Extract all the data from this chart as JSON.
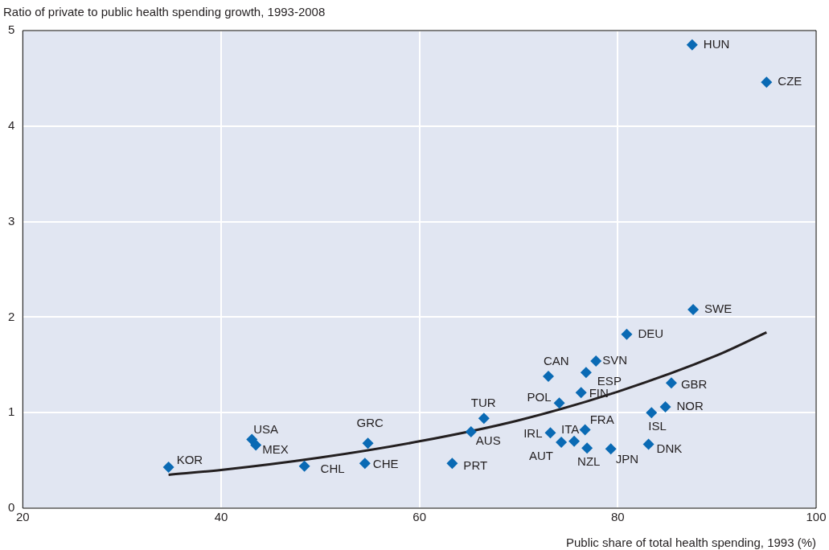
{
  "chart_data": {
    "type": "scatter",
    "ylabel": "Ratio of private to public health spending growth, 1993-2008",
    "xlabel": "Public share of total health spending, 1993 (%)",
    "xlim": [
      20,
      100
    ],
    "xticks": [
      20,
      40,
      60,
      80,
      100
    ],
    "ylim": [
      0,
      5
    ],
    "yticks": [
      0,
      1,
      2,
      3,
      4,
      5
    ],
    "grid": true,
    "legend": false,
    "marker": "diamond",
    "series": [
      {
        "color": "#0a6ab4",
        "x": [
          34.7,
          43.1,
          43.5,
          48.4,
          54.8,
          54.5,
          63.3,
          65.2,
          66.5,
          73.0,
          73.2,
          74.3,
          74.1,
          75.6,
          76.8,
          77.8,
          76.3,
          76.7,
          76.9,
          79.3,
          80.9,
          83.4,
          84.8,
          83.1,
          85.4,
          87.6,
          87.5,
          95.0
        ],
        "values": [
          0.43,
          0.72,
          0.66,
          0.44,
          0.68,
          0.47,
          0.47,
          0.8,
          0.94,
          1.38,
          0.79,
          0.69,
          1.1,
          0.7,
          1.42,
          1.54,
          1.21,
          0.82,
          0.63,
          0.62,
          1.82,
          1.0,
          1.06,
          0.67,
          1.31,
          2.08,
          4.85,
          4.46
        ]
      },
      {
        "type": "line",
        "color": "#231f20",
        "marker": "none",
        "x": [
          34.7,
          40,
          50,
          60,
          70,
          80,
          90,
          95.0
        ],
        "values": [
          0.35,
          0.4,
          0.53,
          0.7,
          0.92,
          1.22,
          1.6,
          1.84
        ]
      }
    ],
    "annotations": [
      {
        "text": "KOR",
        "x": 34.7,
        "y": 0.43
      },
      {
        "text": "USA",
        "x": 43.1,
        "y": 0.72
      },
      {
        "text": "MEX",
        "x": 43.5,
        "y": 0.66
      },
      {
        "text": "CHL",
        "x": 48.4,
        "y": 0.44
      },
      {
        "text": "GRC",
        "x": 54.8,
        "y": 0.68
      },
      {
        "text": "CHE",
        "x": 54.5,
        "y": 0.47
      },
      {
        "text": "PRT",
        "x": 63.3,
        "y": 0.47
      },
      {
        "text": "AUS",
        "x": 65.2,
        "y": 0.8
      },
      {
        "text": "TUR",
        "x": 66.5,
        "y": 0.94
      },
      {
        "text": "CAN",
        "x": 73.0,
        "y": 1.38
      },
      {
        "text": "IRL",
        "x": 73.2,
        "y": 0.79
      },
      {
        "text": "AUT",
        "x": 74.3,
        "y": 0.69
      },
      {
        "text": "POL",
        "x": 74.1,
        "y": 1.1
      },
      {
        "text": "ITA",
        "x": 75.6,
        "y": 0.7
      },
      {
        "text": "ESP",
        "x": 76.8,
        "y": 1.42
      },
      {
        "text": "SVN",
        "x": 77.8,
        "y": 1.54
      },
      {
        "text": "FIN",
        "x": 76.3,
        "y": 1.21
      },
      {
        "text": "FRA",
        "x": 76.7,
        "y": 0.82
      },
      {
        "text": "NZL",
        "x": 76.9,
        "y": 0.63
      },
      {
        "text": "JPN",
        "x": 79.3,
        "y": 0.62
      },
      {
        "text": "DEU",
        "x": 80.9,
        "y": 1.82
      },
      {
        "text": "ISL",
        "x": 83.4,
        "y": 1.0
      },
      {
        "text": "NOR",
        "x": 84.8,
        "y": 1.06
      },
      {
        "text": "DNK",
        "x": 83.1,
        "y": 0.67
      },
      {
        "text": "GBR",
        "x": 85.4,
        "y": 1.31
      },
      {
        "text": "SWE",
        "x": 87.6,
        "y": 2.08
      },
      {
        "text": "HUN",
        "x": 87.5,
        "y": 4.85
      },
      {
        "text": "CZE",
        "x": 95.0,
        "y": 4.46
      }
    ]
  }
}
